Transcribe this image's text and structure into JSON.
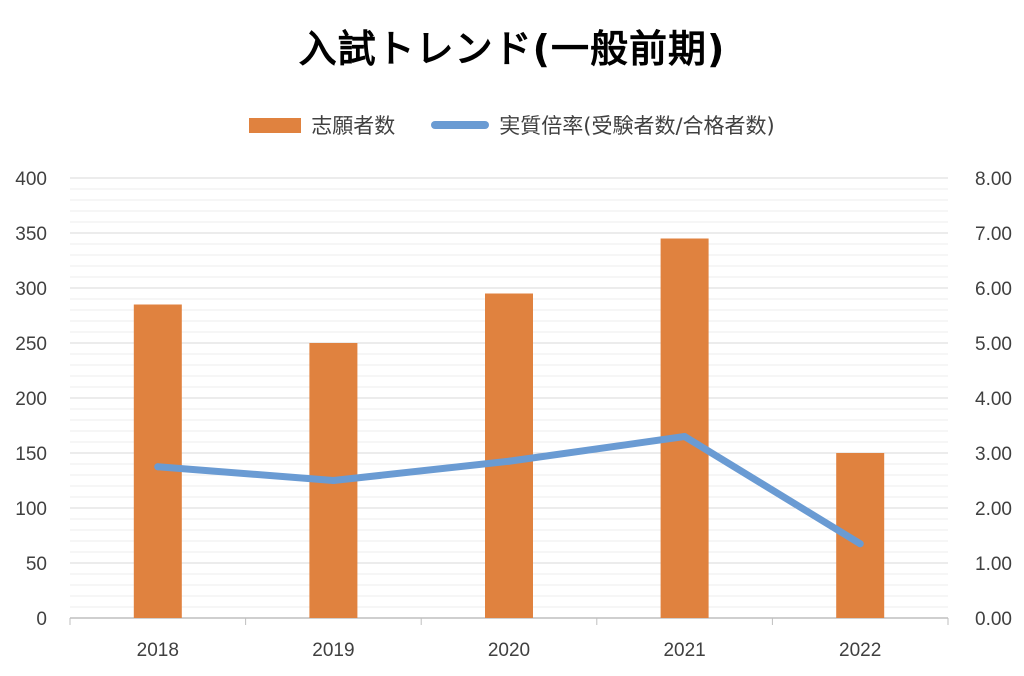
{
  "chart_data": {
    "type": "bar",
    "title": "入試トレンド(一般前期)",
    "categories": [
      "2018",
      "2019",
      "2020",
      "2021",
      "2022"
    ],
    "series": [
      {
        "name": "志願者数",
        "type": "bar",
        "axis": "left",
        "color": "#E0823F",
        "values": [
          285,
          250,
          295,
          345,
          150
        ]
      },
      {
        "name": "実質倍率(受験者数/合格者数)",
        "type": "line",
        "axis": "right",
        "color": "#6A9BD3",
        "values": [
          2.75,
          2.5,
          2.85,
          3.3,
          1.35
        ]
      }
    ],
    "y_left": {
      "ylim": [
        0,
        400
      ],
      "ticks": [
        "0",
        "50",
        "100",
        "150",
        "200",
        "250",
        "300",
        "350",
        "400"
      ]
    },
    "y_right": {
      "ylim": [
        0,
        8
      ],
      "ticks": [
        "0.00",
        "1.00",
        "2.00",
        "3.00",
        "4.00",
        "5.00",
        "6.00",
        "7.00",
        "8.00"
      ]
    },
    "grid": true,
    "legend_position": "top"
  }
}
